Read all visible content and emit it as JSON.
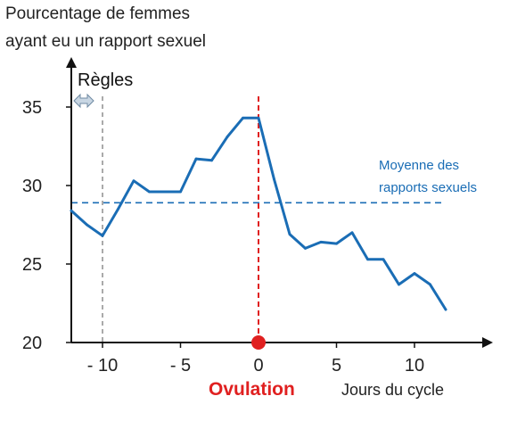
{
  "chart_data": {
    "type": "line",
    "title_lines": [
      "Pourcentage de femmes",
      "ayant eu un rapport sexuel"
    ],
    "xlabel": "Jours du cycle",
    "x_ticks": [
      -10,
      -5,
      0,
      5,
      10
    ],
    "x_tick_labels": [
      "- 10",
      "- 5",
      "0",
      "5",
      "10"
    ],
    "y_ticks": [
      20,
      25,
      30,
      35
    ],
    "y_tick_labels": [
      "20",
      "25",
      "30",
      "35"
    ],
    "xlim": [
      -12,
      14
    ],
    "ylim": [
      20,
      38
    ],
    "series": [
      {
        "color": "#1a6db5",
        "x": [
          -12,
          -11,
          -10,
          -9,
          -8,
          -7,
          -6,
          -5,
          -4,
          -3,
          -2,
          -1,
          0,
          1,
          2,
          3,
          4,
          5,
          6,
          7,
          8,
          9,
          10,
          11,
          12
        ],
        "y": [
          28.4,
          27.5,
          26.8,
          28.5,
          30.3,
          29.6,
          29.6,
          29.6,
          31.7,
          31.6,
          33.1,
          34.3,
          34.3,
          30.4,
          26.9,
          26.0,
          26.4,
          26.3,
          27.0,
          25.3,
          25.3,
          23.7,
          24.4,
          23.7,
          22.1
        ]
      }
    ],
    "mean_line": {
      "y": 28.9,
      "label_lines": [
        "Moyenne des",
        "rapports sexuels"
      ],
      "color": "#1a6db5"
    },
    "ovulation": {
      "x": 0,
      "label": "Ovulation",
      "color": "#e02020"
    },
    "regles": {
      "x": -10,
      "label": "Règles"
    }
  }
}
